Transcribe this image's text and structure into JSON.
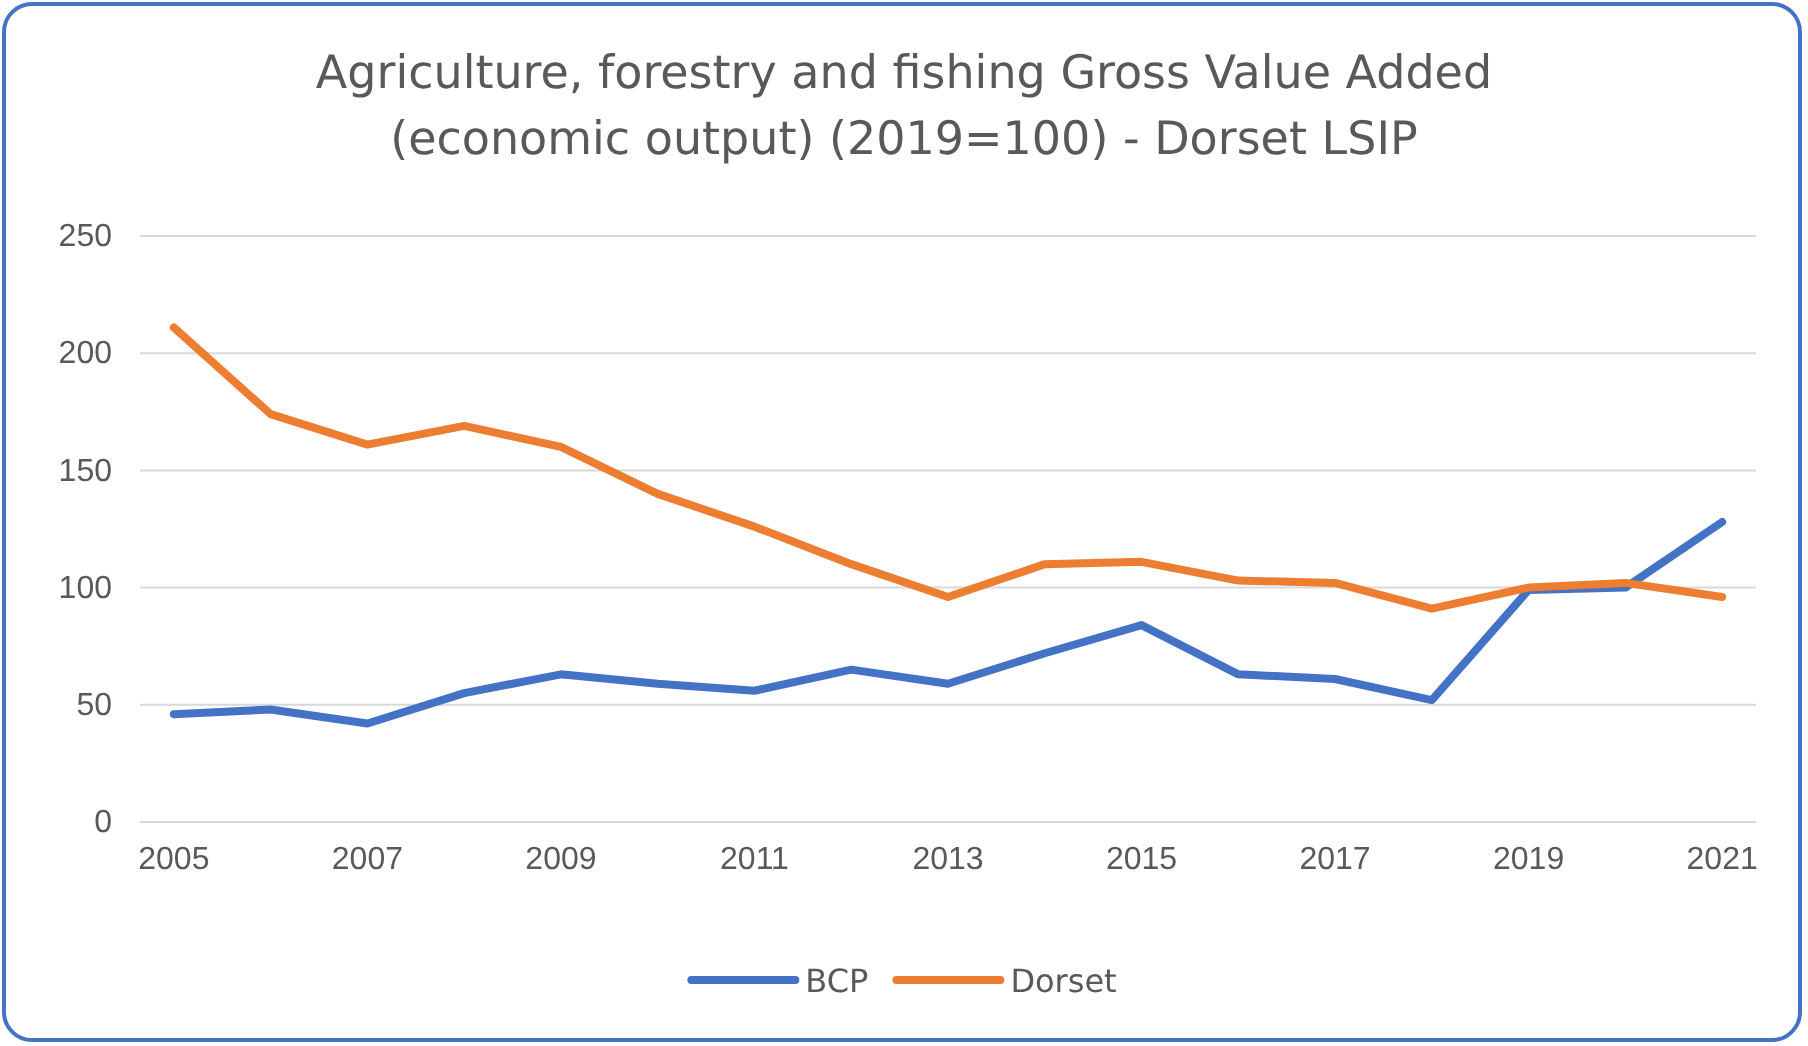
{
  "chart_data": {
    "type": "line",
    "title": "Agriculture, forestry and fishing Gross Value Added\n(economic output) (2019=100) - Dorset LSIP",
    "categories": [
      "2005",
      null,
      "2007",
      null,
      "2009",
      null,
      "2011",
      null,
      "2013",
      null,
      "2015",
      null,
      "2017",
      null,
      "2019",
      null,
      "2021"
    ],
    "series": [
      {
        "name": "BCP",
        "color": "#4472c4",
        "values": [
          46,
          48,
          42,
          55,
          63,
          59,
          56,
          65,
          59,
          72,
          84,
          63,
          61,
          52,
          99,
          100,
          128
        ]
      },
      {
        "name": "Dorset",
        "color": "#ed7d31",
        "values": [
          211,
          174,
          161,
          169,
          160,
          140,
          126,
          110,
          96,
          110,
          111,
          103,
          102,
          91,
          100,
          102,
          96
        ]
      }
    ],
    "ylim": [
      0,
      250
    ],
    "yticks": [
      0,
      50,
      100,
      150,
      200,
      250
    ],
    "grid": "y",
    "legend": "bottom",
    "marker": "none",
    "line_style": "solid"
  }
}
